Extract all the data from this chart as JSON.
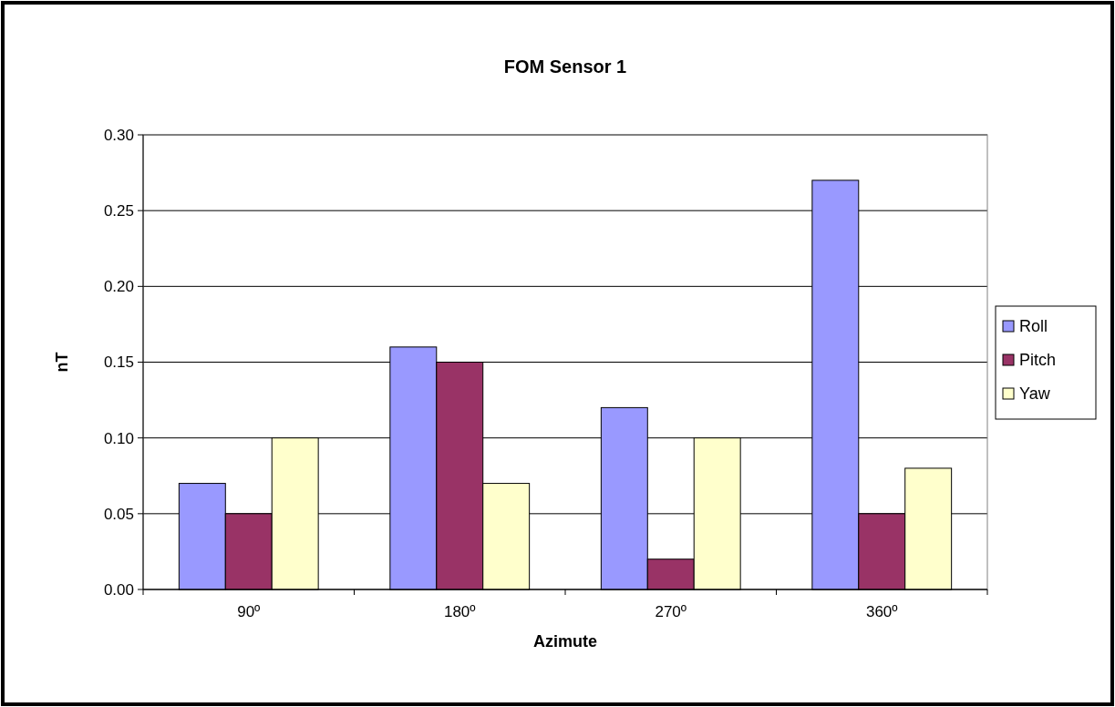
{
  "chart_data": {
    "type": "bar",
    "title": "FOM Sensor 1",
    "xlabel": "Azimute",
    "ylabel": "nT",
    "categories": [
      "90º",
      "180º",
      "270º",
      "360º"
    ],
    "series": [
      {
        "name": "Roll",
        "color": "#9999ff",
        "values": [
          0.07,
          0.16,
          0.12,
          0.27
        ]
      },
      {
        "name": "Pitch",
        "color": "#993366",
        "values": [
          0.05,
          0.15,
          0.02,
          0.05
        ]
      },
      {
        "name": "Yaw",
        "color": "#ffffcc",
        "values": [
          0.1,
          0.07,
          0.1,
          0.08
        ]
      }
    ],
    "ylim": [
      0,
      0.3
    ],
    "yticks": [
      {
        "value": 0,
        "label": "0.00"
      },
      {
        "value": 0.05,
        "label": "0.05"
      },
      {
        "value": 0.1,
        "label": "0.10"
      },
      {
        "value": 0.15,
        "label": "0.15"
      },
      {
        "value": 0.2,
        "label": "0.20"
      },
      {
        "value": 0.25,
        "label": "0.25"
      },
      {
        "value": 0.3,
        "label": "0.30"
      }
    ],
    "grid": "y",
    "legend": "right"
  }
}
